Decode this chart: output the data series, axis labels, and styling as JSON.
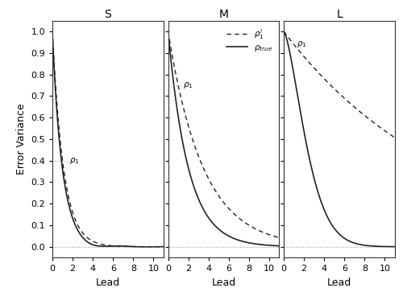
{
  "panels": [
    "S",
    "M",
    "L"
  ],
  "xlabel": "Lead",
  "ylabel": "Error Variance",
  "xlim": [
    0,
    11
  ],
  "ylim": [
    -0.05,
    1.05
  ],
  "yticks": [
    0.0,
    0.1,
    0.2,
    0.3,
    0.4,
    0.5,
    0.6,
    0.7,
    0.8,
    0.9,
    1.0
  ],
  "xticks": [
    0,
    2,
    4,
    6,
    8,
    10
  ],
  "rho1_S": 0.4,
  "rho1_M": 0.75,
  "rho1_L": 0.85,
  "true_decay_S": 1.05,
  "true_decay_M": 0.5,
  "true_decay_L_a": 0.3,
  "true_decay_L_b": 0.25,
  "line_color": "#222222",
  "zero_line_color": "#999999",
  "rho1_line_color": "#999999",
  "bg_color": "#ffffff"
}
